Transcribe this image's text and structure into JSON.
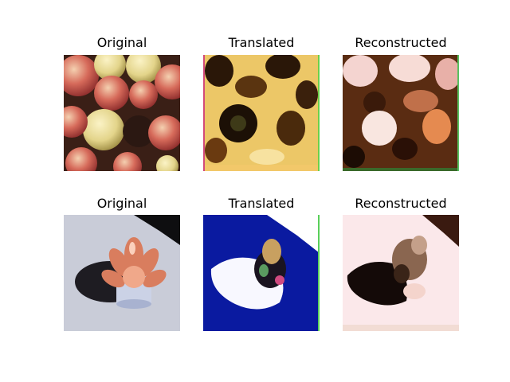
{
  "figure": {
    "rows": [
      {
        "panels": [
          {
            "title": "Original",
            "content": "apples"
          },
          {
            "title": "Translated",
            "content": "apples-translated"
          },
          {
            "title": "Reconstructed",
            "content": "apples-reconstructed"
          }
        ]
      },
      {
        "panels": [
          {
            "title": "Original",
            "content": "orange-on-white"
          },
          {
            "title": "Translated",
            "content": "orange-translated"
          },
          {
            "title": "Reconstructed",
            "content": "orange-reconstructed"
          }
        ]
      }
    ]
  }
}
